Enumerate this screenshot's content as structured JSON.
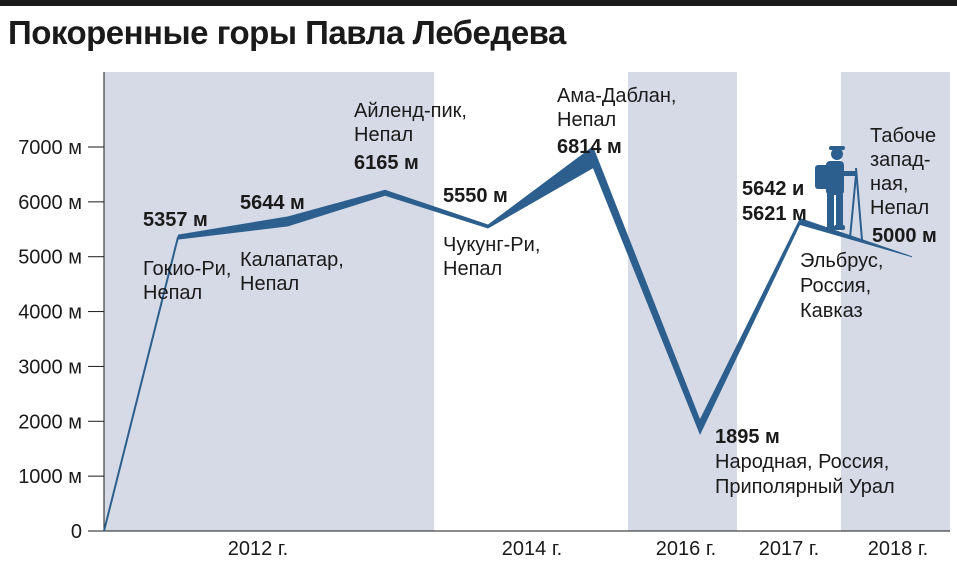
{
  "title": "Покоренные горы Павла Лебедева",
  "colors": {
    "line": "#2c5f8e",
    "band": "#d6dae6",
    "text": "#1a1a1a"
  },
  "chart_data": {
    "type": "area",
    "title": "Покоренные горы Павла Лебедева",
    "xlabel": "",
    "ylabel": "",
    "ylim": [
      0,
      8000
    ],
    "y_ticks": [
      {
        "value": 0,
        "label": "0"
      },
      {
        "value": 1000,
        "label": "1000 м"
      },
      {
        "value": 2000,
        "label": "2000 м"
      },
      {
        "value": 3000,
        "label": "3000 м"
      },
      {
        "value": 4000,
        "label": "4000 м"
      },
      {
        "value": 5000,
        "label": "5000 м"
      },
      {
        "value": 6000,
        "label": "6000 м"
      },
      {
        "value": 7000,
        "label": "7000 м"
      }
    ],
    "periods": [
      {
        "label": "2012 г.",
        "shaded": true
      },
      {
        "label": "2014 г.",
        "shaded": false
      },
      {
        "label": "2016 г.",
        "shaded": true
      },
      {
        "label": "2017 г.",
        "shaded": false
      },
      {
        "label": "2018 г.",
        "shaded": true
      }
    ],
    "points": [
      {
        "order": 0,
        "value": 0,
        "label": "",
        "name": ""
      },
      {
        "order": 1,
        "value": 5357,
        "label": "5357 м",
        "name": "Гокио-Ри, Непал"
      },
      {
        "order": 2,
        "value": 5644,
        "label": "5644 м",
        "name": "Калапатар, Непал"
      },
      {
        "order": 3,
        "value": 6165,
        "label": "6165 м",
        "name": "Айленд-пик, Непал"
      },
      {
        "order": 4,
        "value": 5550,
        "label": "5550 м",
        "name": "Чукунг-Ри, Непал"
      },
      {
        "order": 5,
        "value": 6814,
        "label": "6814 м",
        "name": "Ама-Даблан, Непал"
      },
      {
        "order": 6,
        "value": 1895,
        "label": "1895 м",
        "name": "Народная, Россия, Приполярный Урал"
      },
      {
        "order": 7,
        "value": 5642,
        "label": "5642 и 5621 м",
        "name": "Эльбрус, Россия, Кавказ"
      },
      {
        "order": 8,
        "value": 5000,
        "label": "5000 м",
        "name": "Табоче западная, Непал"
      }
    ],
    "annotations": [
      {
        "lines": [
          "5357 м",
          "Гокио-Ри,",
          "Непал"
        ]
      },
      {
        "lines": [
          "5644 м",
          "Калапатар,",
          "Непал"
        ]
      },
      {
        "lines": [
          "Айленд-пик,",
          "Непал",
          "6165 м"
        ]
      },
      {
        "lines": [
          "5550 м",
          "Чукунг-Ри,",
          "Непал"
        ]
      },
      {
        "lines": [
          "Ама-Даблан,",
          "Непал",
          "6814 м"
        ]
      },
      {
        "lines": [
          "1895 м",
          "Народная, Россия,",
          "Приполярный Урал"
        ]
      },
      {
        "lines": [
          "5642 и",
          "5621 м",
          "Эльбрус,",
          "Россия,",
          "Кавказ"
        ]
      },
      {
        "lines": [
          "Табоче",
          "запад-",
          "ная,",
          "Непал",
          "5000 м"
        ]
      }
    ],
    "decoration": "hiker-silhouette-icon"
  }
}
